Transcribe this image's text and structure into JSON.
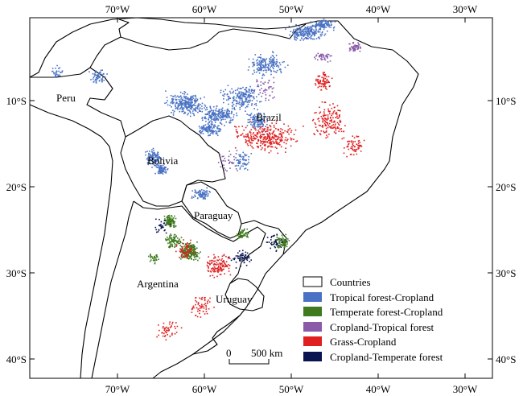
{
  "map": {
    "lon_ticks": [
      "70°W",
      "60°W",
      "50°W",
      "40°W",
      "30°W"
    ],
    "lat_ticks": [
      "10°S",
      "20°S",
      "30°S",
      "40°S"
    ],
    "countries": [
      "Peru",
      "Brazil",
      "Bolivia",
      "Paraguay",
      "Argentina",
      "Uruguay"
    ],
    "scale_bar": {
      "start": "0",
      "end": "500 km"
    },
    "legend": [
      {
        "label": "Countries",
        "color": "#ffffff",
        "icon": "outline-box"
      },
      {
        "label": "Tropical forest-Cropland",
        "color": "#4a72c4"
      },
      {
        "label": "Temperate forest-Cropland",
        "color": "#3f7a1e"
      },
      {
        "label": "Cropland-Tropical forest",
        "color": "#8a5aa8"
      },
      {
        "label": "Grass-Cropland",
        "color": "#e02020"
      },
      {
        "label": "Cropland-Temperate forest",
        "color": "#0a1450"
      }
    ]
  }
}
